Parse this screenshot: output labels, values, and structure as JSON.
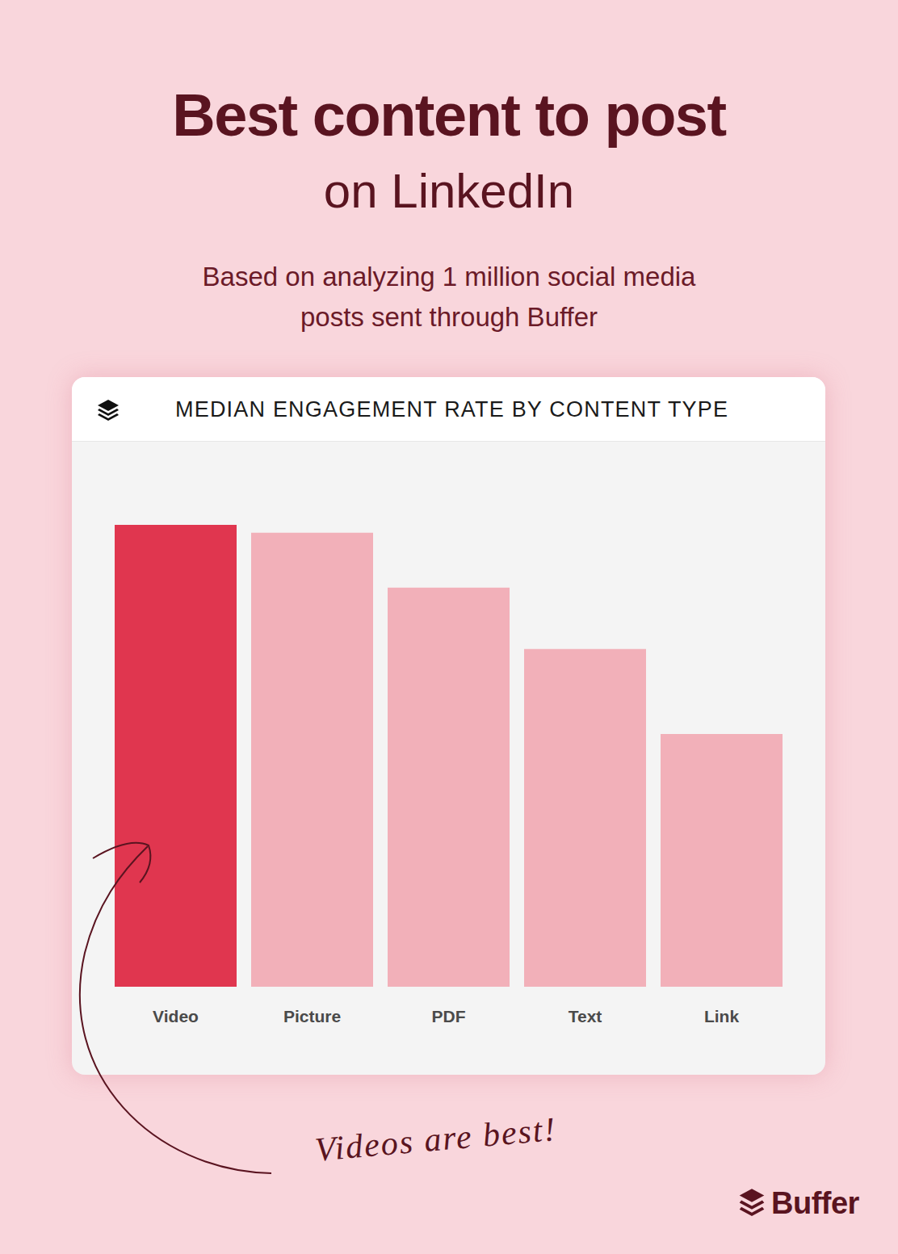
{
  "chart_data": {
    "type": "bar",
    "title": [
      "Best content to post",
      "on LinkedIn"
    ],
    "subtitle": [
      "Based on analyzing 1 million social media",
      "posts sent through Buffer"
    ],
    "chart_title": "MEDIAN ENGAGEMENT RATE BY CONTENT TYPE",
    "categories": [
      "Video",
      "Picture",
      "PDF",
      "Text",
      "Link"
    ],
    "values": [
      100,
      98.3,
      86.4,
      73.1,
      54.7
    ],
    "colors": [
      "#e0364f",
      "#f2b0b9",
      "#f2b0b9",
      "#f2b0b9",
      "#f2b0b9"
    ],
    "ylim": [
      0,
      100
    ],
    "yticks": [
      0,
      100
    ],
    "grid": false,
    "tick_labels": "x",
    "data_labels": false,
    "annotations": [
      "Videos are best!"
    ],
    "source": "Buffer"
  }
}
